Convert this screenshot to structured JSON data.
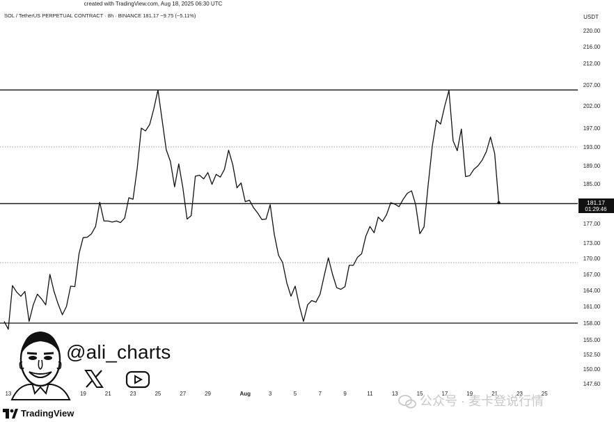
{
  "created_text": "created with TradingView.com, Aug 18, 2025 06:30 UTC",
  "header": {
    "symbol": "SOL / TetherUS PERPETUAL CONTRACT · 8h · BINANCE",
    "price": "181.17",
    "change": "−9.75 (−5.11%)"
  },
  "currency": "USDT",
  "last_price_label": "181.17",
  "countdown_label": "01:29:46",
  "handle": "@ali_charts",
  "brand": "TradingView",
  "watermark": "公众号 · 麦卡登说行情",
  "icons": {
    "x": "x-logo-icon",
    "youtube": "youtube-icon",
    "avatar": "caricature-avatar-icon",
    "tv": "tradingview-logo-icon",
    "wechat": "wechat-icon"
  },
  "colors": {
    "line": "#111111",
    "level": "#111111",
    "dotted": "#9a9a9a",
    "price_tag": "#111111"
  },
  "chart_data": {
    "type": "line",
    "title": "",
    "xlabel": "",
    "ylabel": "",
    "y_ticks": [
      220.0,
      216.0,
      212.0,
      207.0,
      202.0,
      197.0,
      193.0,
      189.0,
      185.0,
      177.0,
      173.0,
      170.0,
      167.0,
      164.0,
      161.0,
      158.0,
      155.0,
      152.5,
      150.0,
      147.6
    ],
    "x_ticks": [
      {
        "label": "13",
        "t": 1
      },
      {
        "label": "15",
        "t": 7
      },
      {
        "label": "17",
        "t": 13
      },
      {
        "label": "19",
        "t": 19
      },
      {
        "label": "21",
        "t": 25
      },
      {
        "label": "23",
        "t": 31
      },
      {
        "label": "25",
        "t": 37
      },
      {
        "label": "27",
        "t": 43
      },
      {
        "label": "29",
        "t": 49
      },
      {
        "label": "Aug",
        "t": 58
      },
      {
        "label": "3",
        "t": 64
      },
      {
        "label": "5",
        "t": 70
      },
      {
        "label": "7",
        "t": 76
      },
      {
        "label": "9",
        "t": 82
      },
      {
        "label": "11",
        "t": 88
      },
      {
        "label": "13",
        "t": 94
      },
      {
        "label": "15",
        "t": 100
      },
      {
        "label": "17",
        "t": 106
      },
      {
        "label": "19",
        "t": 112
      },
      {
        "label": "21",
        "t": 118
      },
      {
        "label": "23",
        "t": 124
      },
      {
        "label": "25",
        "t": 130
      }
    ],
    "x_domain": [
      -1,
      138
    ],
    "levels": [
      {
        "value": 205.8,
        "style": "solid"
      },
      {
        "value": 193.0,
        "style": "dotted"
      },
      {
        "value": 181.0,
        "style": "solid"
      },
      {
        "value": 169.2,
        "style": "dotted"
      },
      {
        "value": 158.0,
        "style": "solid"
      }
    ],
    "series": [
      {
        "values": [
          158.3,
          156.9,
          164.9,
          163.7,
          162.9,
          163.8,
          158.3,
          161.3,
          163.3,
          162.4,
          161.3,
          167.0,
          163.8,
          161.4,
          159.5,
          161.0,
          164.8,
          164.7,
          170.9,
          174.1,
          174.2,
          174.9,
          176.4,
          181.3,
          177.5,
          177.5,
          177.3,
          177.5,
          177.2,
          178.1,
          182.2,
          181.9,
          188.4,
          197.0,
          196.4,
          197.8,
          201.3,
          205.8,
          198.8,
          192.4,
          189.9,
          184.4,
          189.4,
          184.2,
          177.9,
          178.6,
          186.7,
          186.9,
          186.1,
          187.5,
          184.9,
          187.1,
          186.5,
          188.2,
          192.3,
          189.2,
          184.2,
          185.2,
          181.4,
          181.7,
          180.2,
          179.1,
          177.8,
          177.9,
          180.8,
          174.7,
          170.6,
          169.2,
          165.4,
          162.9,
          164.8,
          161.2,
          158.3,
          161.3,
          162.1,
          161.8,
          163.3,
          166.8,
          170.1,
          167.0,
          164.5,
          164.2,
          164.7,
          168.7,
          168.7,
          170.2,
          170.9,
          174.4,
          176.4,
          175.1,
          178.3,
          177.4,
          178.8,
          181.2,
          180.9,
          180.4,
          181.9,
          183.1,
          183.6,
          180.8,
          174.9,
          176.3,
          184.7,
          193.2,
          198.8,
          197.9,
          202.0,
          205.7,
          194.3,
          192.2,
          196.8,
          186.6,
          186.8,
          188.2,
          189.0,
          190.2,
          192.0,
          195.1,
          191.6,
          181.2
        ]
      }
    ]
  }
}
